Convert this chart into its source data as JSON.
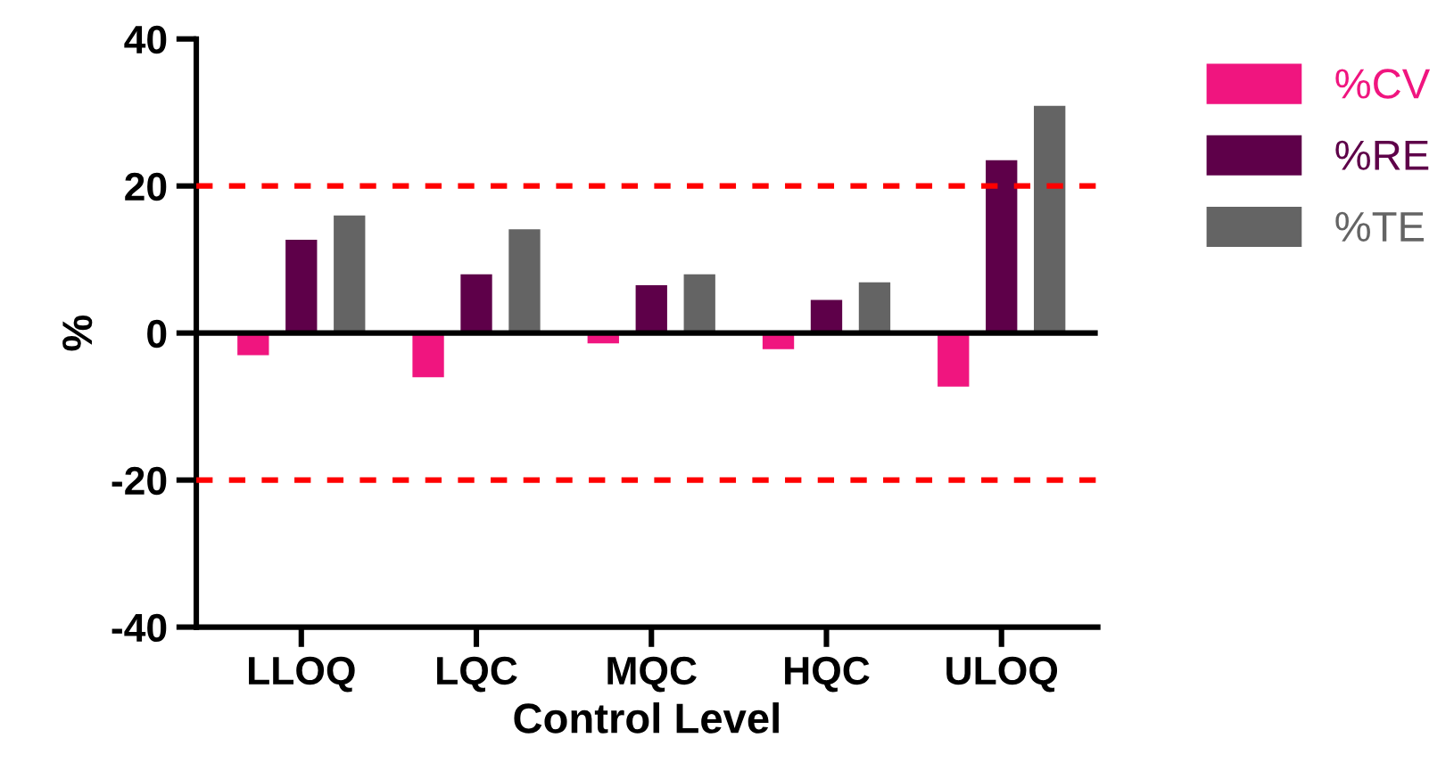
{
  "chart_data": {
    "type": "bar",
    "xlabel": "Control Level",
    "ylabel": "%",
    "categories": [
      "LLOQ",
      "LQC",
      "MQC",
      "HQC",
      "ULOQ"
    ],
    "series": [
      {
        "name": "%CV",
        "color": "#f0157f",
        "values": [
          -3.0,
          -6.0,
          -1.4,
          -2.2,
          -7.3
        ]
      },
      {
        "name": "%RE",
        "color": "#5e0049",
        "values": [
          12.7,
          8.0,
          6.5,
          4.5,
          23.5
        ]
      },
      {
        "name": "%TE",
        "color": "#646464",
        "values": [
          16.0,
          14.1,
          8.0,
          6.9,
          30.9
        ]
      }
    ],
    "ylim": [
      -40,
      40
    ],
    "yticks": [
      -40,
      -20,
      0,
      20,
      40
    ],
    "ref_lines": [
      {
        "axis": "y",
        "value": 20,
        "color": "#ff0000",
        "line_style": "dashed"
      },
      {
        "axis": "y",
        "value": -20,
        "color": "#ff0000",
        "line_style": "dashed"
      },
      {
        "axis": "y",
        "value": 0,
        "color": "#000000",
        "line_style": "solid"
      }
    ],
    "grid": false,
    "legend": "top right"
  }
}
